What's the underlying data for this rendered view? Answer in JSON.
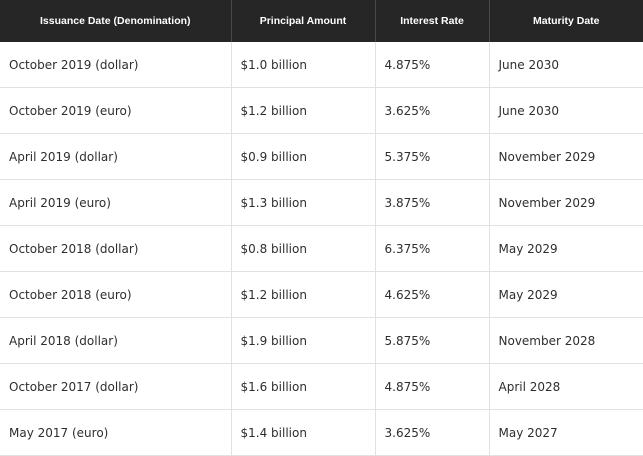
{
  "table": {
    "headers": [
      "Issuance Date (Denomination)",
      "Principal Amount",
      "Interest Rate",
      "Maturity Date"
    ],
    "rows": [
      [
        "October 2019 (dollar)",
        "$1.0 billion",
        "4.875%",
        "June 2030"
      ],
      [
        "October 2019 (euro)",
        "$1.2 billion",
        "3.625%",
        "June 2030"
      ],
      [
        "April 2019 (dollar)",
        "$0.9 billion",
        "5.375%",
        "November 2029"
      ],
      [
        "April 2019 (euro)",
        "$1.3 billion",
        "3.875%",
        "November 2029"
      ],
      [
        "October 2018 (dollar)",
        "$0.8 billion",
        "6.375%",
        "May 2029"
      ],
      [
        "October 2018 (euro)",
        "$1.2 billion",
        "4.625%",
        "May 2029"
      ],
      [
        "April 2018 (dollar)",
        "$1.9 billion",
        "5.875%",
        "November 2028"
      ],
      [
        "October 2017 (dollar)",
        "$1.6 billion",
        "4.875%",
        "April 2028"
      ],
      [
        "May 2017 (euro)",
        "$1.4 billion",
        "3.625%",
        "May 2027"
      ]
    ]
  }
}
